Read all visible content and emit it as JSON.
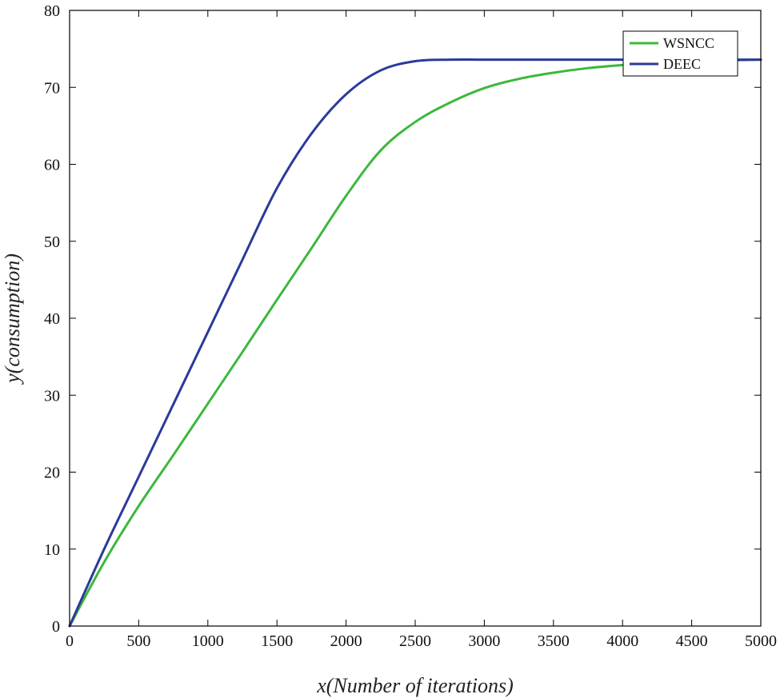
{
  "chart_data": {
    "type": "line",
    "title": "",
    "xlabel": "x(Number of iterations)",
    "ylabel": "y(consumption)",
    "xlim": [
      0,
      5000
    ],
    "ylim": [
      0,
      80
    ],
    "xticks": [
      0,
      500,
      1000,
      1500,
      2000,
      2500,
      3000,
      3500,
      4000,
      4500,
      5000
    ],
    "yticks": [
      0,
      10,
      20,
      30,
      40,
      50,
      60,
      70,
      80
    ],
    "grid": false,
    "legend_position": "top-right",
    "series": [
      {
        "name": "WSNCC",
        "color": "#3cb83c",
        "x": [
          0,
          250,
          500,
          750,
          1000,
          1250,
          1500,
          1750,
          2000,
          2250,
          2500,
          2750,
          3000,
          3250,
          3500,
          3750,
          4000,
          4250,
          4500,
          4750,
          5000
        ],
        "y": [
          0,
          8.3,
          15.6,
          22.2,
          28.9,
          35.6,
          42.4,
          49.1,
          55.9,
          61.8,
          65.5,
          68.0,
          69.9,
          71.1,
          71.9,
          72.5,
          72.9,
          73.2,
          73.4,
          73.5,
          73.6
        ]
      },
      {
        "name": "DEEC",
        "color": "#2b3a9a",
        "x": [
          0,
          250,
          500,
          750,
          1000,
          1250,
          1500,
          1750,
          2000,
          2250,
          2500,
          2750,
          3000,
          3500,
          4000,
          4500,
          5000
        ],
        "y": [
          0,
          10.0,
          19.4,
          28.8,
          38.2,
          47.6,
          56.9,
          64.0,
          69.1,
          72.2,
          73.4,
          73.6,
          73.6,
          73.6,
          73.6,
          73.6,
          73.6
        ]
      }
    ]
  }
}
